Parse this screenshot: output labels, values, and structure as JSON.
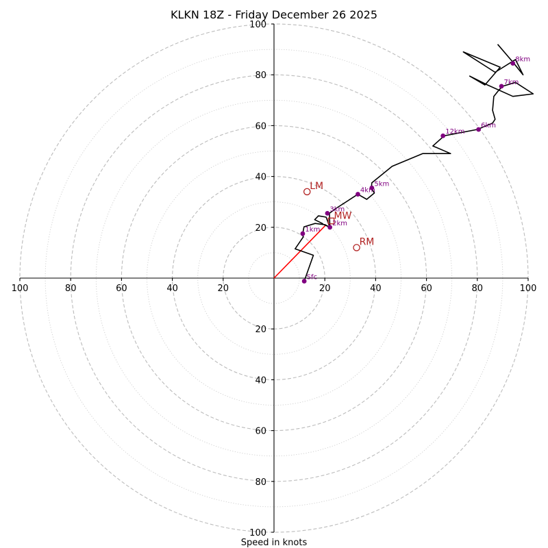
{
  "chart_data": {
    "type": "hodograph",
    "title": "KLKN 18Z - Friday December 26 2025",
    "xlabel": "Speed in knots",
    "max_speed": 100,
    "ring_major_step": 20,
    "ring_minor_step": 10,
    "x_tick_labels": [
      "100",
      "80",
      "60",
      "40",
      "20",
      "20",
      "40",
      "60",
      "80",
      "100"
    ],
    "x_tick_values": [
      -100,
      -80,
      -60,
      -40,
      -20,
      20,
      40,
      60,
      80,
      100
    ],
    "y_tick_labels": [
      "100",
      "80",
      "60",
      "40",
      "20",
      "20",
      "40",
      "60",
      "80",
      "100"
    ],
    "y_tick_values": [
      100,
      80,
      60,
      40,
      20,
      -20,
      -40,
      -60,
      -80,
      -100
    ],
    "profile": [
      [
        11.9,
        -1.2
      ],
      [
        15.5,
        9.0
      ],
      [
        8.3,
        11.5
      ],
      [
        11.5,
        16.2
      ],
      [
        11.3,
        17.5
      ],
      [
        11.8,
        20.2
      ],
      [
        16.2,
        21.5
      ],
      [
        20.1,
        21.0
      ],
      [
        22.0,
        20.0
      ],
      [
        19.5,
        21.1
      ],
      [
        19.0,
        21.5
      ],
      [
        16.0,
        23.0
      ],
      [
        17.5,
        24.5
      ],
      [
        20.5,
        24.0
      ],
      [
        22.0,
        20.0
      ],
      [
        21.8,
        25.5
      ],
      [
        24.5,
        27.5
      ],
      [
        33.0,
        33.0
      ],
      [
        36.5,
        31.0
      ],
      [
        39.5,
        33.5
      ],
      [
        38.3,
        35.5
      ],
      [
        38.5,
        37.5
      ],
      [
        46.5,
        44.0
      ],
      [
        58.5,
        49.0
      ],
      [
        69.5,
        49.0
      ],
      [
        62.5,
        52.0
      ],
      [
        67.0,
        56.0
      ],
      [
        80.0,
        58.5
      ],
      [
        86.0,
        61.0
      ],
      [
        87.0,
        62.5
      ],
      [
        86.0,
        66.0
      ],
      [
        86.5,
        71.5
      ],
      [
        88.5,
        74.0
      ],
      [
        90.0,
        75.5
      ],
      [
        95.0,
        77.0
      ],
      [
        102.0,
        72.5
      ],
      [
        94.0,
        71.5
      ],
      [
        84.0,
        76.0
      ],
      [
        77.0,
        79.5
      ],
      [
        83.0,
        76.0
      ],
      [
        89.0,
        83.0
      ],
      [
        74.5,
        89.0
      ],
      [
        87.0,
        81.0
      ],
      [
        95.0,
        86.0
      ],
      [
        98.0,
        80.0
      ],
      [
        94.0,
        85.0
      ],
      [
        88.0,
        92.0
      ]
    ],
    "height_markers": [
      {
        "label": "Sfc",
        "u": 11.9,
        "v": -1.2
      },
      {
        "label": "1km",
        "u": 11.3,
        "v": 17.5
      },
      {
        "label": "2km",
        "u": 22.0,
        "v": 20.0
      },
      {
        "label": "3km",
        "u": 21.0,
        "v": 25.5
      },
      {
        "label": "4km",
        "u": 33.0,
        "v": 33.0
      },
      {
        "label": "5km",
        "u": 38.5,
        "v": 35.5
      },
      {
        "label": "6km",
        "u": 80.5,
        "v": 58.5
      },
      {
        "label": "7km",
        "u": 89.5,
        "v": 75.5
      },
      {
        "label": "8km",
        "u": 94.0,
        "v": 84.5
      },
      {
        "label": "12km",
        "u": 66.5,
        "v": 56.0
      }
    ],
    "storm_motion": [
      {
        "label": "LM",
        "u": 13.0,
        "v": 34.0
      },
      {
        "label": "RM",
        "u": 32.5,
        "v": 12.0
      }
    ],
    "mean_wind": {
      "label": "MW",
      "u": 22.5,
      "v": 22.5
    },
    "shear_vector": {
      "from": [
        0,
        0
      ],
      "to": [
        20.5,
        21.0
      ]
    },
    "colors": {
      "hodograph": "#000000",
      "height_markers": "#800080",
      "storm_motion": "#b22222",
      "shear": "#ff0000",
      "major_rings": "#bbbbbb",
      "minor_rings": "#cccccc"
    }
  }
}
